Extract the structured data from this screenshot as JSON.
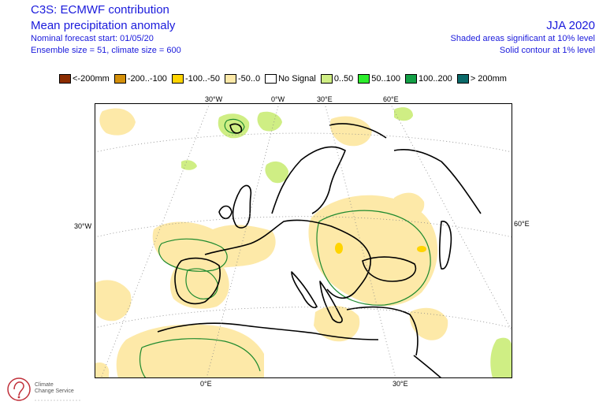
{
  "header": {
    "title": "C3S: ECMWF contribution",
    "subtitle": "Mean precipitation anomaly",
    "forecast_start": "Nominal forecast start: 01/05/20",
    "ensemble": "Ensemble size = 51, climate size = 600",
    "season": "JJA 2020",
    "significance_shaded": "Shaded areas significant at 10% level",
    "significance_contour": "Solid contour at 1% level"
  },
  "legend": [
    {
      "label": "<-200mm",
      "color": "#8b2c00"
    },
    {
      "label": "-200..-100",
      "color": "#d4900a"
    },
    {
      "label": "-100..-50",
      "color": "#ffd400"
    },
    {
      "label": "-50..0",
      "color": "#fde9a8"
    },
    {
      "label": "No Signal",
      "color": "#ffffff"
    },
    {
      "label": "0..50",
      "color": "#cfee84"
    },
    {
      "label": "50..100",
      "color": "#2dee2d"
    },
    {
      "label": "100..200",
      "color": "#13a046"
    },
    {
      "label": "> 200mm",
      "color": "#0b6a6a"
    }
  ],
  "axes": {
    "top": [
      "30°W",
      "0°W",
      "30°E",
      "60°E"
    ],
    "left": "30°W",
    "right": "60°E",
    "bottom": [
      "0°E",
      "30°E"
    ]
  },
  "logo": {
    "name": "Climate Change Service",
    "icon": "c3s-logo-icon"
  }
}
